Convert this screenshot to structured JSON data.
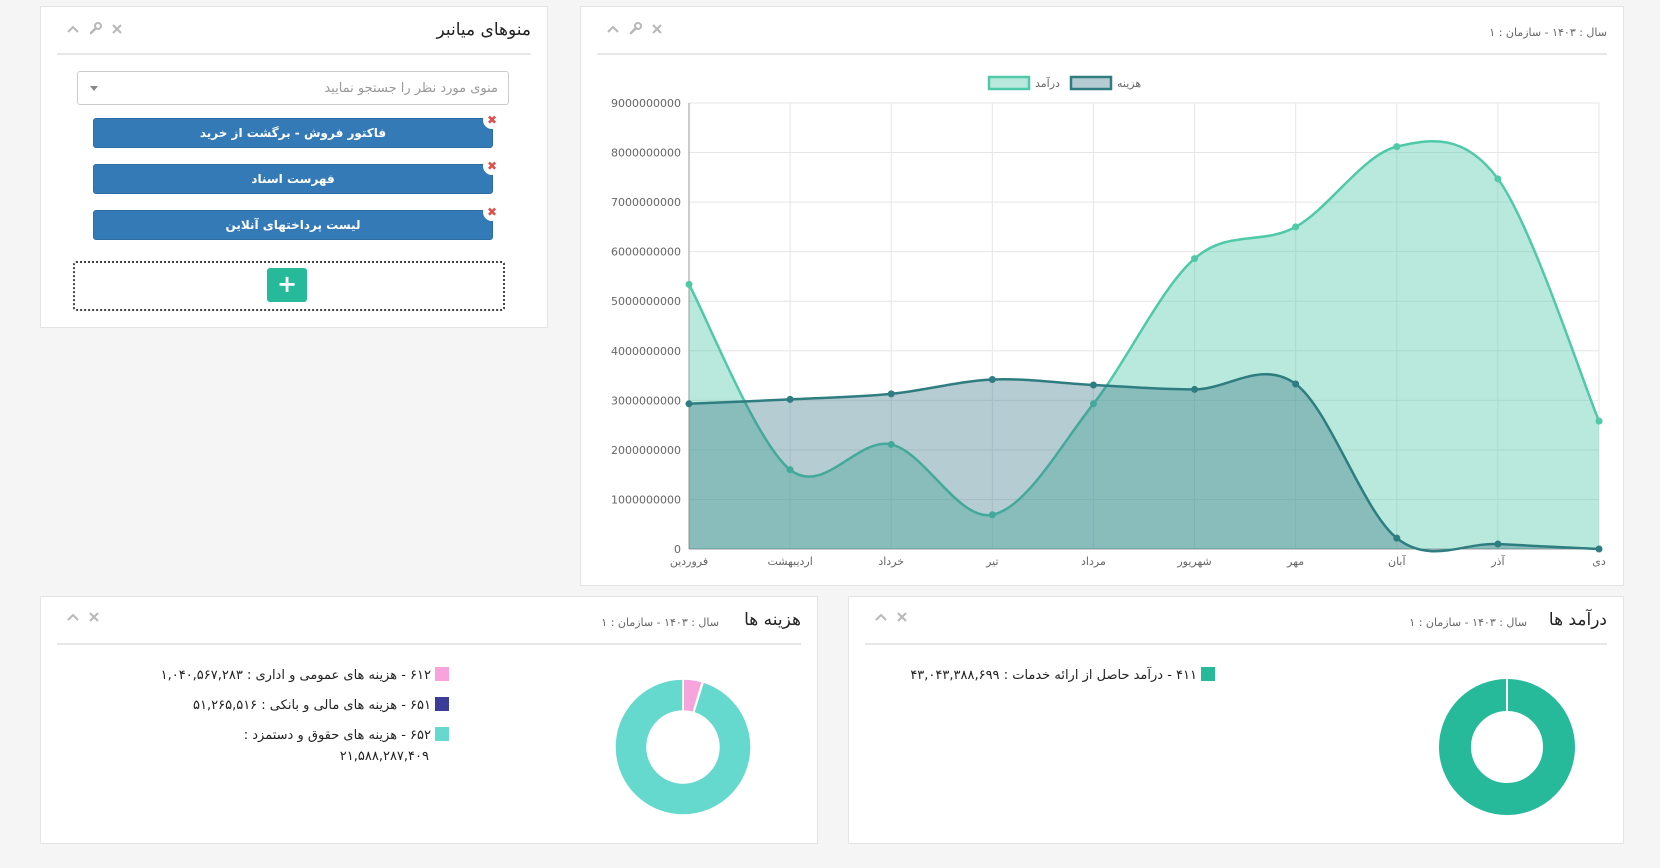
{
  "menus_panel": {
    "title": "منوهای میانبر",
    "search_placeholder": "منوی مورد نظر را جستجو نمایید",
    "shortcuts": [
      {
        "label": "فاکتور فروش - برگشت از خرید"
      },
      {
        "label": "فهرست اسناد"
      },
      {
        "label": "لیست پرداختهای آنلاین"
      }
    ],
    "remove_glyph": "✖",
    "add_glyph": "+"
  },
  "chart_panel": {
    "subtitle": "سال : ۱۴۰۳ - سازمان : ۱"
  },
  "chart_data": {
    "type": "area",
    "categories": [
      "فروردین",
      "اردیبهشت",
      "خرداد",
      "تیر",
      "مرداد",
      "شهریور",
      "مهر",
      "آبان",
      "آذر",
      "دی"
    ],
    "ylim": [
      0,
      9000000000
    ],
    "yticks": [
      0,
      1000000000,
      2000000000,
      3000000000,
      4000000000,
      5000000000,
      6000000000,
      7000000000,
      8000000000,
      9000000000
    ],
    "grid": true,
    "legend_position": "top",
    "series": [
      {
        "name": "درآمد",
        "color": "#4fc9a8",
        "fill": "rgba(79,201,168,0.4)",
        "values": [
          5340000000,
          1600000000,
          2110000000,
          690000000,
          2930000000,
          5860000000,
          6500000000,
          8120000000,
          7470000000,
          2580000000
        ]
      },
      {
        "name": "هزینه",
        "color": "#2e7d80",
        "fill": "rgba(46,110,128,0.35)",
        "values": [
          2930000000,
          3020000000,
          3130000000,
          3420000000,
          3310000000,
          3220000000,
          3330000000,
          220000000,
          100000000,
          0
        ]
      }
    ]
  },
  "expenses_panel": {
    "title": "هزینه ها",
    "subtitle": "سال : ۱۴۰۳ - سازمان : ۱",
    "items": [
      {
        "label": "۶۱۲ - هزینه های عمومی و اداری :",
        "amount": "۱,۰۴۰,۵۶۷,۲۸۳",
        "color": "#f7a3dc",
        "value": 1040567283
      },
      {
        "label": "۶۵۱ - هزینه های مالی و بانکی :",
        "amount": "۵۱,۲۶۵,۵۱۶",
        "color": "#3b3b98",
        "value": 51265516
      },
      {
        "label": "۶۵۲ - هزینه های حقوق و دستمزد :",
        "amount": "۲۱,۵۸۸,۲۸۷,۴۰۹",
        "color": "#66d9cf",
        "value": 21588287409
      }
    ]
  },
  "income_panel": {
    "title": "درآمد ها",
    "subtitle": "سال : ۱۴۰۳ - سازمان : ۱",
    "items": [
      {
        "label": "۴۱۱ - درآمد حاصل از ارائه خدمات :",
        "amount": "۴۳,۰۴۳,۳۸۸,۶۹۹",
        "color": "#26b99a",
        "value": 43043388699
      }
    ]
  }
}
